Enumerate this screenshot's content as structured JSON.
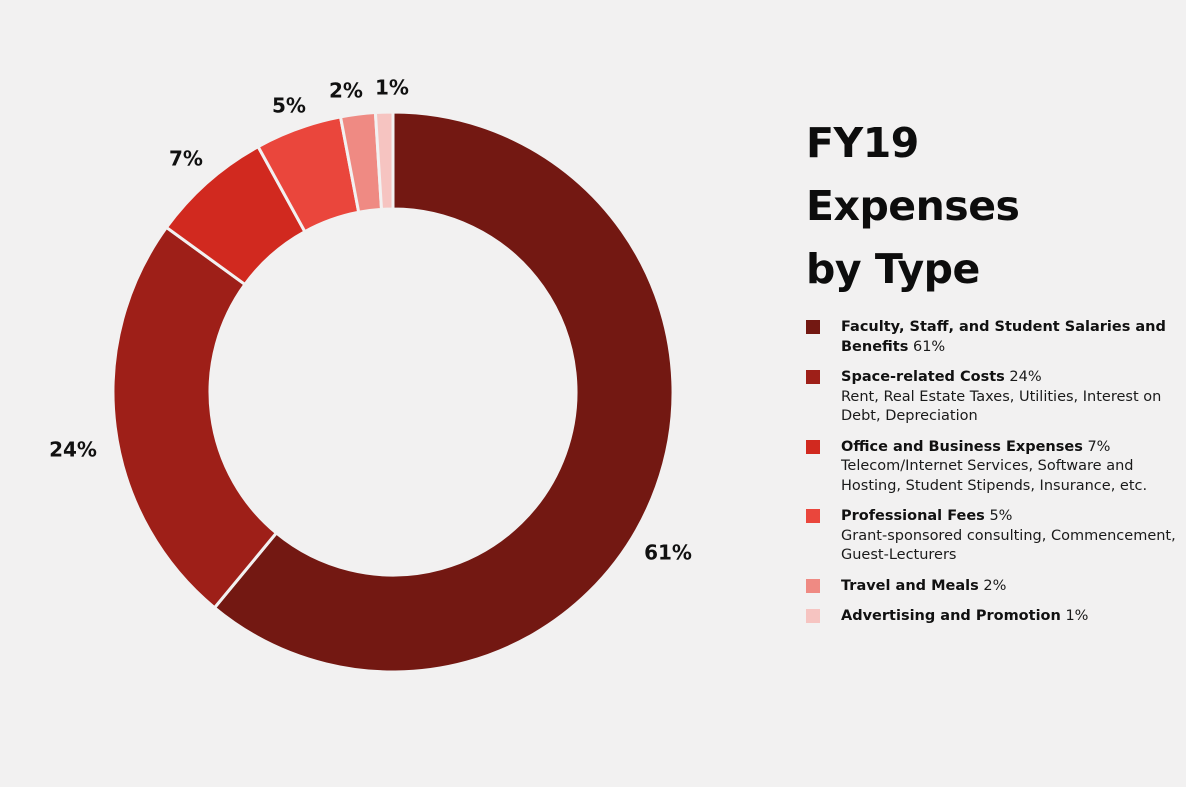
{
  "chart_data": {
    "type": "pie",
    "variant": "donut",
    "title": "FY19 Expenses by Type",
    "categories": [
      "Faculty, Staff, and Student Salaries and Benefits",
      "Space-related Costs",
      "Office and Business Expenses",
      "Professional Fees",
      "Travel and Meals",
      "Advertising and Promotion"
    ],
    "values": [
      61,
      24,
      7,
      5,
      2,
      1
    ],
    "unit": "%",
    "colors": [
      "#731812",
      "#9e1f18",
      "#d1291f",
      "#ea463c",
      "#ef8a83",
      "#f6c4c1"
    ],
    "data_labels": [
      "61%",
      "24%",
      "7%",
      "5%",
      "2%",
      "1%"
    ],
    "legend_placement": "right"
  },
  "title": {
    "line1": "FY19",
    "line2": "Expenses",
    "line3": "by Type"
  },
  "legend": [
    {
      "name": "Faculty, Staff, and Student Salaries and Benefits",
      "pct": "61%",
      "desc": ""
    },
    {
      "name": "Space-related Costs",
      "pct": "24%",
      "desc": "Rent, Real Estate Taxes, Utilities, Interest on Debt, Depreciation"
    },
    {
      "name": "Office and Business Expenses",
      "pct": "7%",
      "desc": "Telecom/Internet Services, Software and Hosting, Student Stipends, Insurance, etc."
    },
    {
      "name": "Professional Fees",
      "pct": "5%",
      "desc": "Grant-sponsored consulting, Commencement, Guest-Lecturers"
    },
    {
      "name": "Travel and Meals",
      "pct": "2%",
      "desc": ""
    },
    {
      "name": "Advertising and Promotion",
      "pct": "1%",
      "desc": ""
    }
  ]
}
